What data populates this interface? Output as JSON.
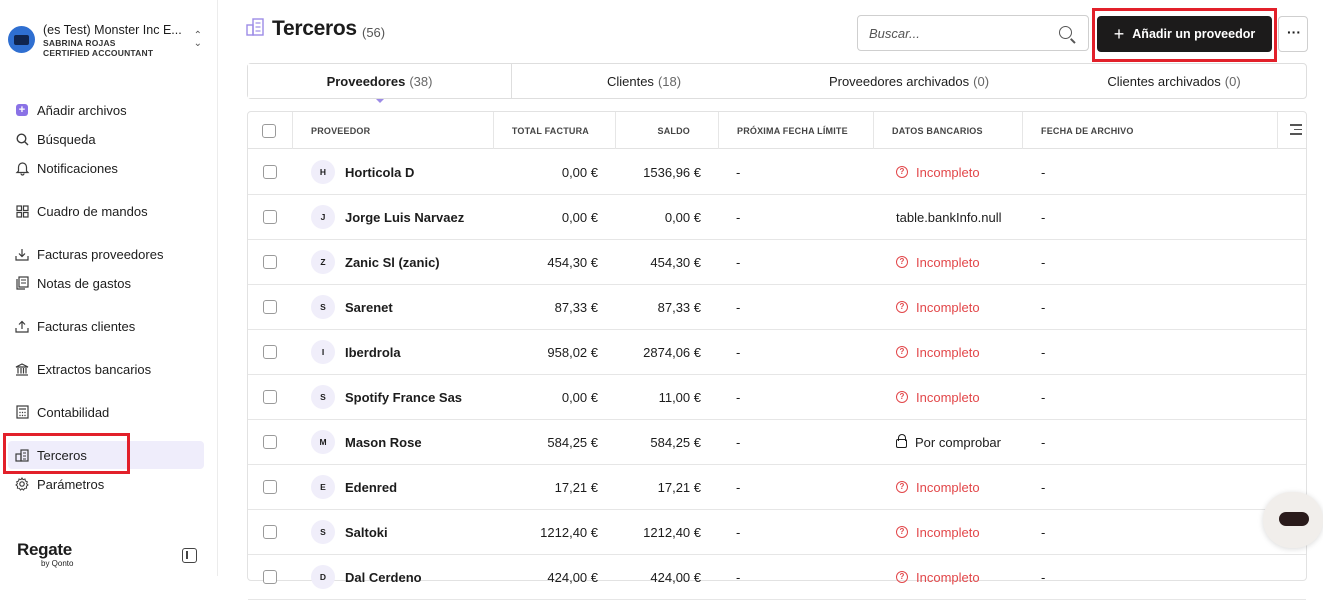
{
  "org": {
    "name": "(es Test) Monster Inc E...",
    "user": "SABRINA ROJAS",
    "role": "CERTIFIED ACCOUNTANT"
  },
  "sidebar": {
    "items": [
      {
        "label": "Añadir archivos",
        "icon": "add-file-icon"
      },
      {
        "label": "Búsqueda",
        "icon": "search-icon"
      },
      {
        "label": "Notificaciones",
        "icon": "bell-icon"
      },
      {
        "label": "Cuadro de mandos",
        "icon": "dashboard-icon"
      },
      {
        "label": "Facturas proveedores",
        "icon": "download-tray-icon"
      },
      {
        "label": "Notas de gastos",
        "icon": "receipt-icon"
      },
      {
        "label": "Facturas clientes",
        "icon": "upload-tray-icon"
      },
      {
        "label": "Extractos bancarios",
        "icon": "bank-icon"
      },
      {
        "label": "Contabilidad",
        "icon": "calculator-icon"
      },
      {
        "label": "Terceros",
        "icon": "buildings-icon"
      },
      {
        "label": "Parámetros",
        "icon": "gear-icon"
      }
    ],
    "active": "Terceros"
  },
  "brand": {
    "name": "Regate",
    "by": "by Qonto"
  },
  "header": {
    "title": "Terceros",
    "count": "(56)",
    "search_placeholder": "Buscar...",
    "add_label": "Añadir un proveedor",
    "more_label": "···"
  },
  "tabs": [
    {
      "label": "Proveedores",
      "count": "(38)",
      "active": true
    },
    {
      "label": "Clientes",
      "count": "(18)",
      "active": false
    },
    {
      "label": "Proveedores archivados",
      "count": "(0)",
      "active": false
    },
    {
      "label": "Clientes archivados",
      "count": "(0)",
      "active": false
    }
  ],
  "table": {
    "columns": {
      "proveedor": "PROVEEDOR",
      "total": "TOTAL FACTURA",
      "saldo": "SALDO",
      "fecha": "PRÓXIMA FECHA LÍMITE",
      "bancarios": "DATOS BANCARIOS",
      "archivo": "FECHA DE ARCHIVO"
    },
    "rows": [
      {
        "initial": "H",
        "name": "Horticola D",
        "total": "0,00 €",
        "saldo": "1536,96 €",
        "fecha": "-",
        "bancarios": "Incompleto",
        "status": "incomplete",
        "archivo": "-"
      },
      {
        "initial": "J",
        "name": "Jorge Luis Narvaez",
        "total": "0,00 €",
        "saldo": "0,00 €",
        "fecha": "-",
        "bancarios": "table.bankInfo.null",
        "status": "null",
        "archivo": "-"
      },
      {
        "initial": "Z",
        "name": "Zanic Sl (zanic)",
        "total": "454,30 €",
        "saldo": "454,30 €",
        "fecha": "-",
        "bancarios": "Incompleto",
        "status": "incomplete",
        "archivo": "-"
      },
      {
        "initial": "S",
        "name": "Sarenet",
        "total": "87,33 €",
        "saldo": "87,33 €",
        "fecha": "-",
        "bancarios": "Incompleto",
        "status": "incomplete",
        "archivo": "-"
      },
      {
        "initial": "I",
        "name": "Iberdrola",
        "total": "958,02 €",
        "saldo": "2874,06 €",
        "fecha": "-",
        "bancarios": "Incompleto",
        "status": "incomplete",
        "archivo": "-"
      },
      {
        "initial": "S",
        "name": "Spotify France Sas",
        "total": "0,00 €",
        "saldo": "11,00 €",
        "fecha": "-",
        "bancarios": "Incompleto",
        "status": "incomplete",
        "archivo": "-"
      },
      {
        "initial": "M",
        "name": "Mason Rose",
        "total": "584,25 €",
        "saldo": "584,25 €",
        "fecha": "-",
        "bancarios": "Por comprobar",
        "status": "pending",
        "archivo": "-"
      },
      {
        "initial": "E",
        "name": "Edenred",
        "total": "17,21 €",
        "saldo": "17,21 €",
        "fecha": "-",
        "bancarios": "Incompleto",
        "status": "incomplete",
        "archivo": "-"
      },
      {
        "initial": "S",
        "name": "Saltoki",
        "total": "1212,40 €",
        "saldo": "1212,40 €",
        "fecha": "-",
        "bancarios": "Incompleto",
        "status": "incomplete",
        "archivo": "-"
      },
      {
        "initial": "D",
        "name": "Dal Cerdeno",
        "total": "424,00 €",
        "saldo": "424,00 €",
        "fecha": "-",
        "bancarios": "Incompleto",
        "status": "incomplete",
        "archivo": "-"
      }
    ]
  },
  "colors": {
    "accent": "#9c8be6",
    "highlight": "#e2202a",
    "danger": "#e2474a",
    "primary_button": "#1c1b1b"
  }
}
